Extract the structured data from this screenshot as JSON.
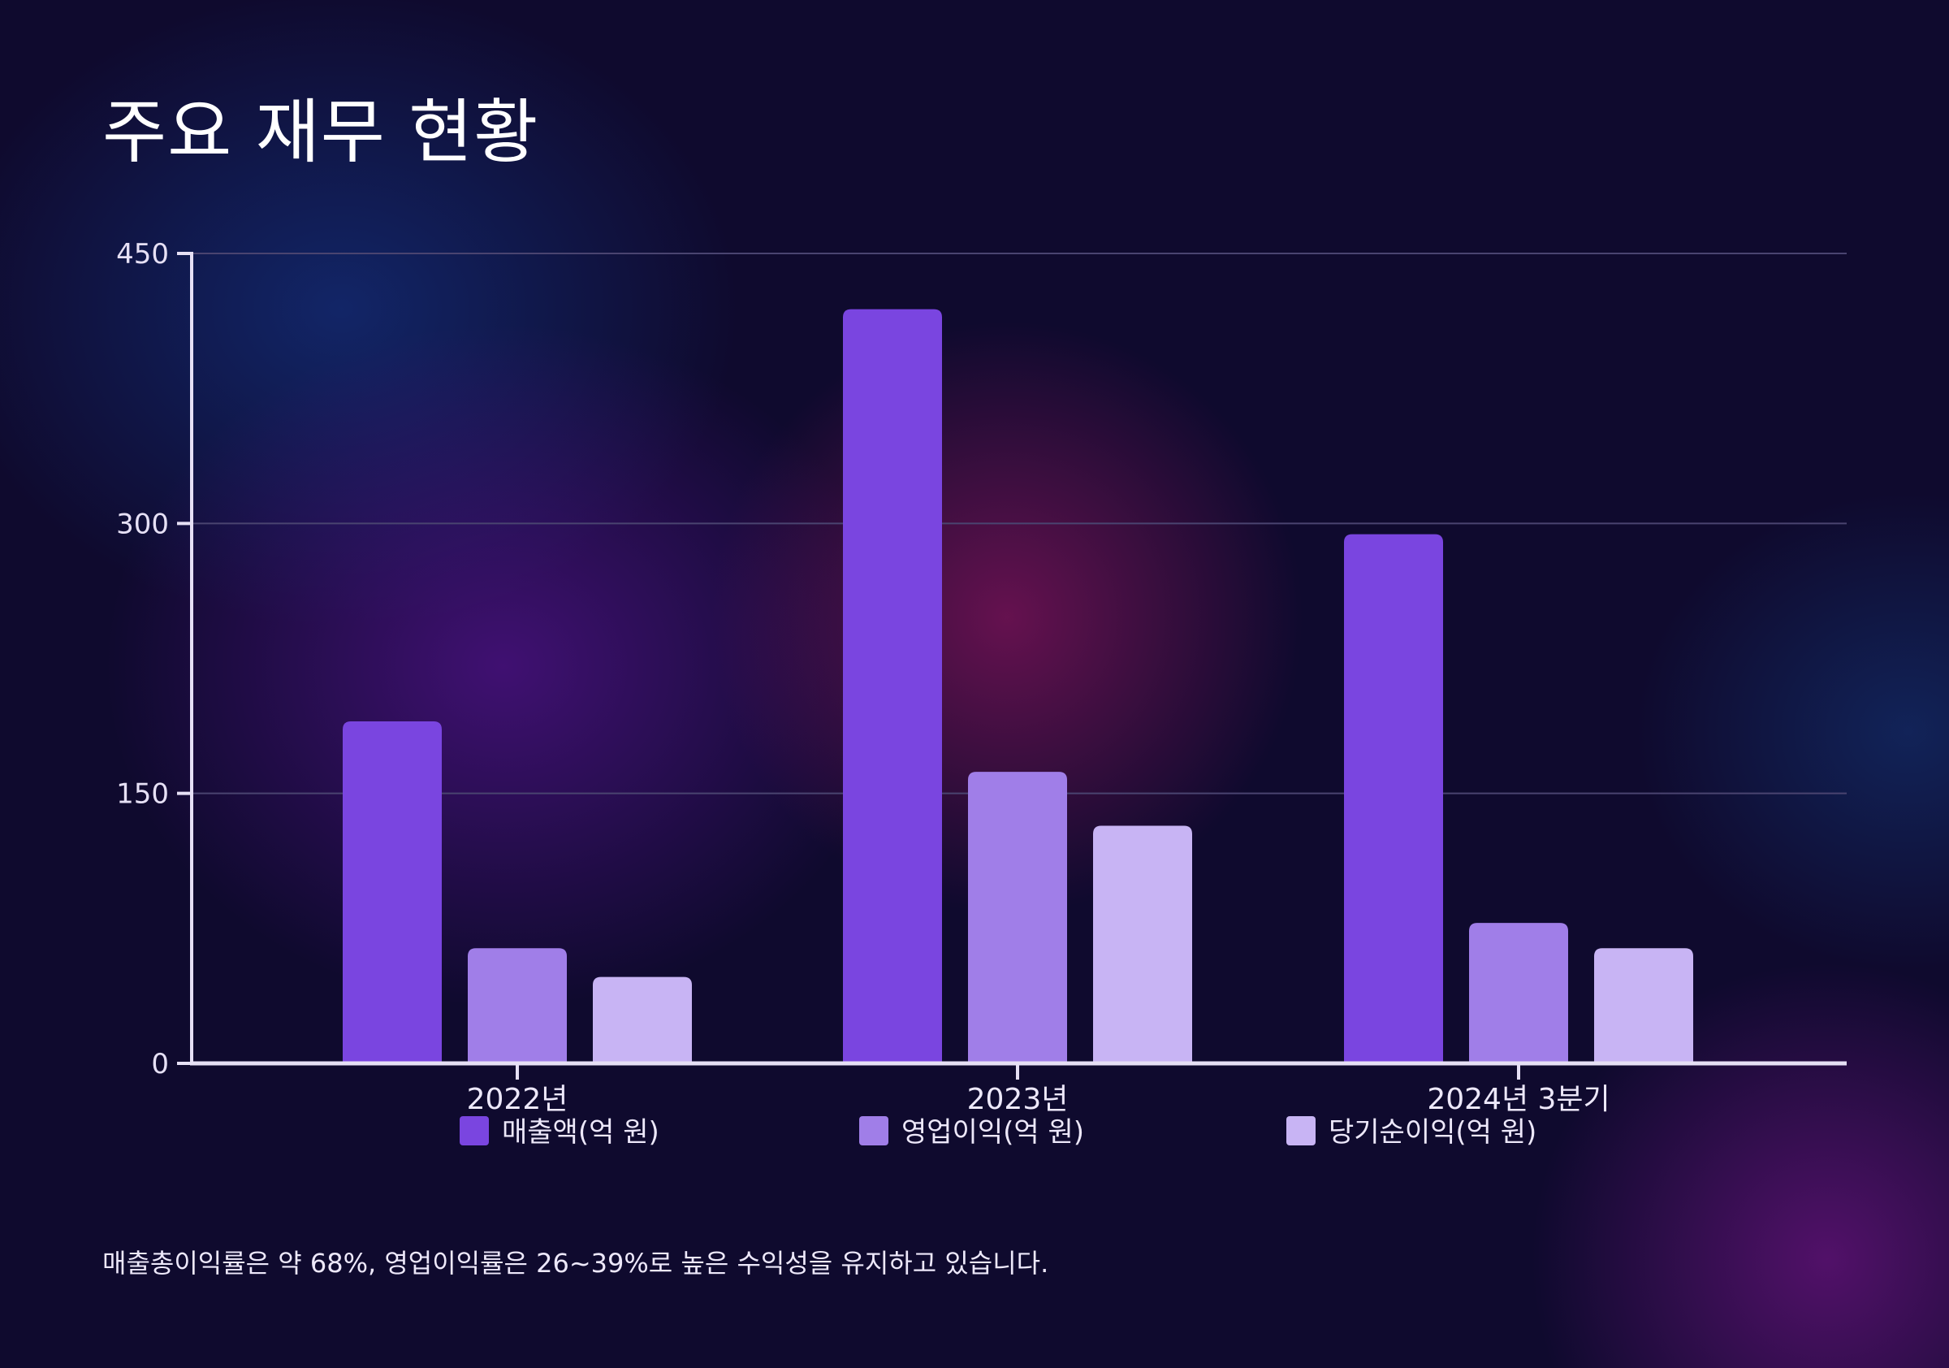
{
  "title": "주요 재무 현황",
  "footnote": "매출총이익률은 약 68%, 영업이익률은 26~39%로 높은 수익성을 유지하고 있습니다.",
  "colors": {
    "background": "#0f0a2e",
    "revenue": "#7a45e0",
    "operating_profit": "#a07ee8",
    "net_income": "#c8b4f4",
    "axis": "#e6e0f5",
    "grid": "#4a4470"
  },
  "chart_data": {
    "type": "bar",
    "categories": [
      "2022년",
      "2023년",
      "2024년 3분기"
    ],
    "series": [
      {
        "name": "매출액(억 원)",
        "values": [
          190,
          419,
          294
        ],
        "color": "#7a45e0"
      },
      {
        "name": "영업이익(억 원)",
        "values": [
          64,
          162,
          78
        ],
        "color": "#a07ee8"
      },
      {
        "name": "당기순이익(억 원)",
        "values": [
          48,
          132,
          64
        ],
        "color": "#c8b4f4"
      }
    ],
    "yticks": [
      0,
      150,
      300,
      450
    ],
    "ylim": [
      0,
      450
    ],
    "grid": true,
    "legend_position": "bottom"
  }
}
